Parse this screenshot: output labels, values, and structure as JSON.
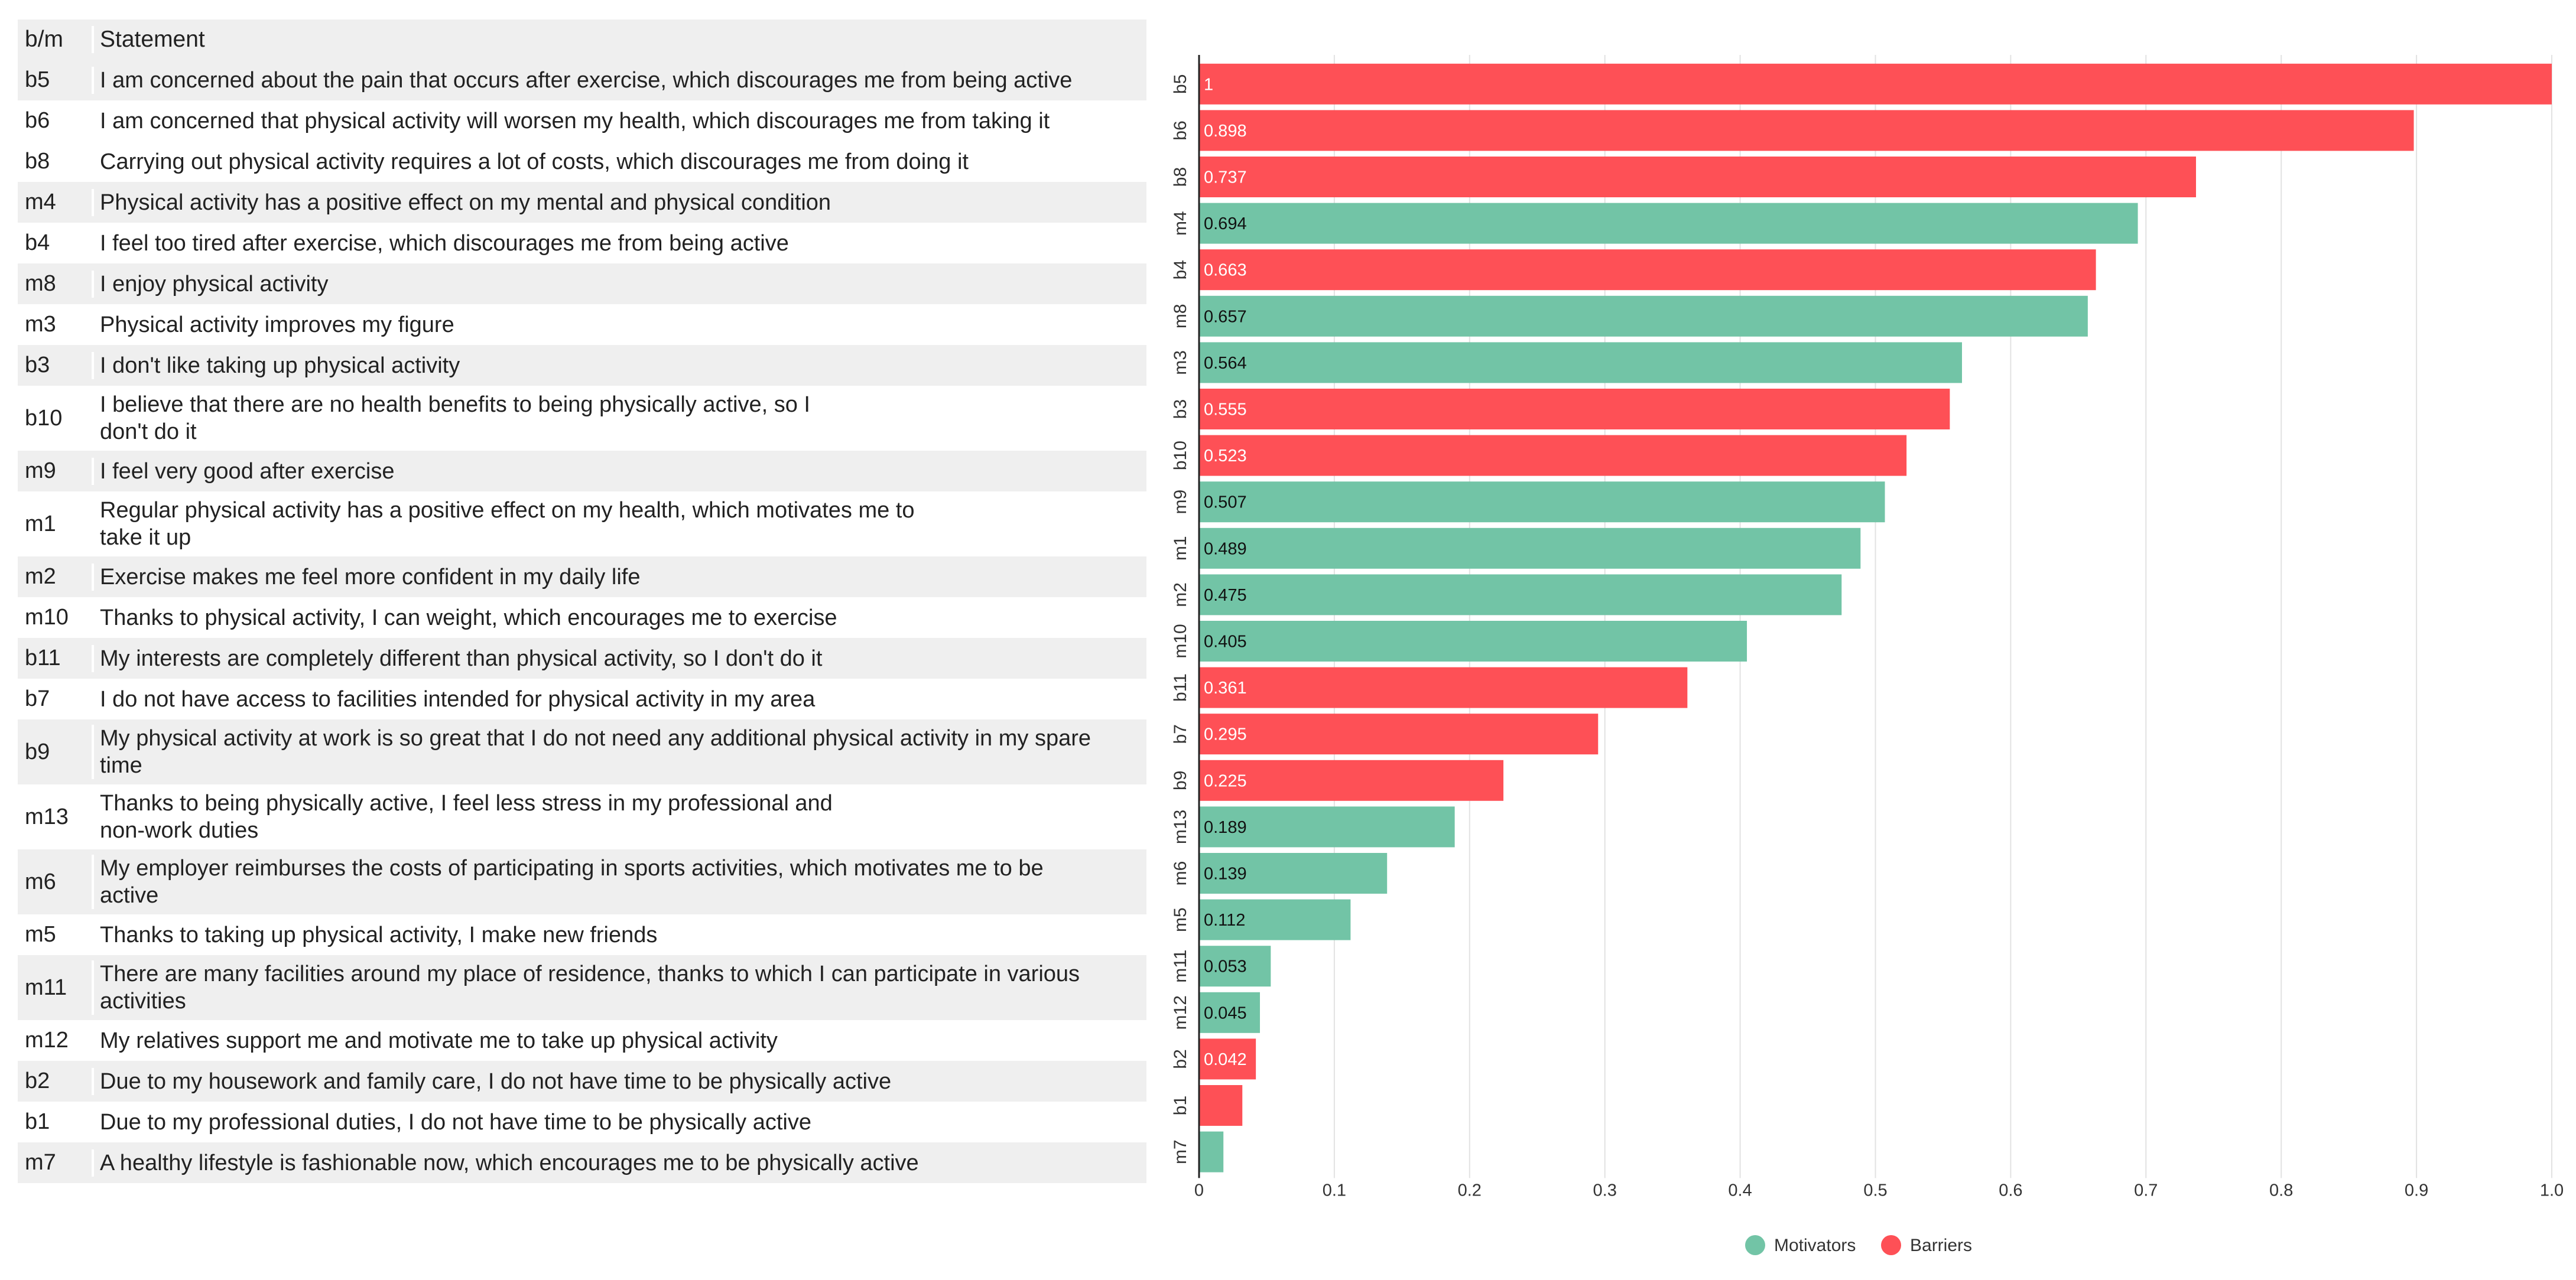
{
  "table": {
    "header": {
      "code": "b/m",
      "statement": "Statement"
    },
    "rows": [
      {
        "code": "b5",
        "statement": "I am concerned about the pain that occurs after exercise, which discourages me from being active",
        "lines": 1,
        "shade": true
      },
      {
        "code": "b6",
        "statement": "I am concerned that physical activity will worsen my health, which discourages me from taking it",
        "lines": 1,
        "shade": false
      },
      {
        "code": "b8",
        "statement": "Carrying out physical activity requires a lot of costs, which discourages me from doing it",
        "lines": 1,
        "shade": false
      },
      {
        "code": "m4",
        "statement": "Physical activity has a positive effect on my mental and physical condition",
        "lines": 1,
        "shade": true
      },
      {
        "code": "b4",
        "statement": "I feel too tired after exercise, which discourages me from being active",
        "lines": 1,
        "shade": false
      },
      {
        "code": "m8",
        "statement": "I enjoy physical activity",
        "lines": 1,
        "shade": true
      },
      {
        "code": "m3",
        "statement": "Physical activity improves my figure",
        "lines": 1,
        "shade": false
      },
      {
        "code": "b3",
        "statement": "I don't like taking up physical activity",
        "lines": 1,
        "shade": true
      },
      {
        "code": "b10",
        "statement": "I believe that there are no health benefits to being physically active, so I\ndon't do it",
        "lines": 2,
        "shade": false
      },
      {
        "code": "m9",
        "statement": "I feel very good after exercise",
        "lines": 1,
        "shade": true
      },
      {
        "code": "m1",
        "statement": "Regular physical activity has a positive effect on my health, which motivates me to\ntake it up",
        "lines": 2,
        "shade": false
      },
      {
        "code": "m2",
        "statement": "Exercise makes me feel more confident in my daily life",
        "lines": 1,
        "shade": true
      },
      {
        "code": "m10",
        "statement": "Thanks to physical activity, I can weight, which encourages me to exercise",
        "lines": 1,
        "shade": false
      },
      {
        "code": "b11",
        "statement": "My interests are completely different than physical activity, so I don't do it",
        "lines": 1,
        "shade": true
      },
      {
        "code": "b7",
        "statement": "I do not have access to facilities intended for physical activity in my area",
        "lines": 1,
        "shade": false
      },
      {
        "code": "b9",
        "statement": "My physical activity at work is so great that I do not need any additional physical activity in my spare\ntime",
        "lines": 2,
        "shade": true
      },
      {
        "code": "m13",
        "statement": "Thanks to being physically active, I feel less stress in my professional and\nnon-work duties",
        "lines": 2,
        "shade": false
      },
      {
        "code": "m6",
        "statement": "My employer reimburses the costs of participating in sports activities, which motivates me to be\nactive",
        "lines": 2,
        "shade": true
      },
      {
        "code": "m5",
        "statement": "Thanks to taking up physical activity, I make new friends",
        "lines": 1,
        "shade": false
      },
      {
        "code": "m11",
        "statement": "There are many facilities around my place of residence, thanks to which I can participate in various\nactivities",
        "lines": 2,
        "shade": true
      },
      {
        "code": "m12",
        "statement": "My relatives support me and motivate me to take up physical activity",
        "lines": 1,
        "shade": false
      },
      {
        "code": "b2",
        "statement": "Due to my housework and family care, I do not have time to be physically active",
        "lines": 1,
        "shade": true
      },
      {
        "code": "b1",
        "statement": "Due to my professional duties, I do not have time to be physically active",
        "lines": 1,
        "shade": false
      },
      {
        "code": "m7",
        "statement": "A healthy lifestyle is fashionable now, which encourages me to be physically active",
        "lines": 1,
        "shade": true
      }
    ]
  },
  "chart_data": {
    "type": "bar",
    "orientation": "horizontal",
    "categories": [
      "b5",
      "b6",
      "b8",
      "m4",
      "b4",
      "m8",
      "m3",
      "b3",
      "b10",
      "m9",
      "m1",
      "m2",
      "m10",
      "b11",
      "b7",
      "b9",
      "m13",
      "m6",
      "m5",
      "m11",
      "m12",
      "b2",
      "b1",
      "m7"
    ],
    "values": [
      1,
      0.898,
      0.737,
      0.694,
      0.663,
      0.657,
      0.564,
      0.555,
      0.523,
      0.507,
      0.489,
      0.475,
      0.405,
      0.361,
      0.295,
      0.225,
      0.189,
      0.139,
      0.112,
      0.053,
      0.045,
      0.042,
      0.032,
      0.018
    ],
    "groups": [
      "Barriers",
      "Barriers",
      "Barriers",
      "Motivators",
      "Barriers",
      "Motivators",
      "Motivators",
      "Barriers",
      "Barriers",
      "Motivators",
      "Motivators",
      "Motivators",
      "Motivators",
      "Barriers",
      "Barriers",
      "Barriers",
      "Motivators",
      "Motivators",
      "Motivators",
      "Motivators",
      "Motivators",
      "Barriers",
      "Barriers",
      "Motivators"
    ],
    "data_labels": [
      "1",
      "0.898",
      "0.737",
      "0.694",
      "0.663",
      "0.657",
      "0.564",
      "0.555",
      "0.523",
      "0.507",
      "0.489",
      "0.475",
      "0.405",
      "0.361",
      "0.295",
      "0.225",
      "0.189",
      "0.139",
      "0.112",
      "0.053",
      "0.045",
      "0.042",
      "",
      ""
    ],
    "xlim": [
      0,
      1.0
    ],
    "xticks": [
      0,
      0.1,
      0.2,
      0.3,
      0.4,
      0.5,
      0.6,
      0.7,
      0.8,
      0.9,
      1.0
    ],
    "xtick_labels": [
      "0",
      "0.1",
      "0.2",
      "0.3",
      "0.4",
      "0.5",
      "0.6",
      "0.7",
      "0.8",
      "0.9",
      "1.0"
    ],
    "grid": true,
    "legend": [
      {
        "name": "Motivators",
        "color": "#72c4a6"
      },
      {
        "name": "Barriers",
        "color": "#fe5056"
      }
    ],
    "legend_position": "bottom-center",
    "colors": {
      "Motivators": "#72c4a6",
      "Barriers": "#fe5056"
    },
    "title": "",
    "xlabel": "",
    "ylabel": ""
  }
}
